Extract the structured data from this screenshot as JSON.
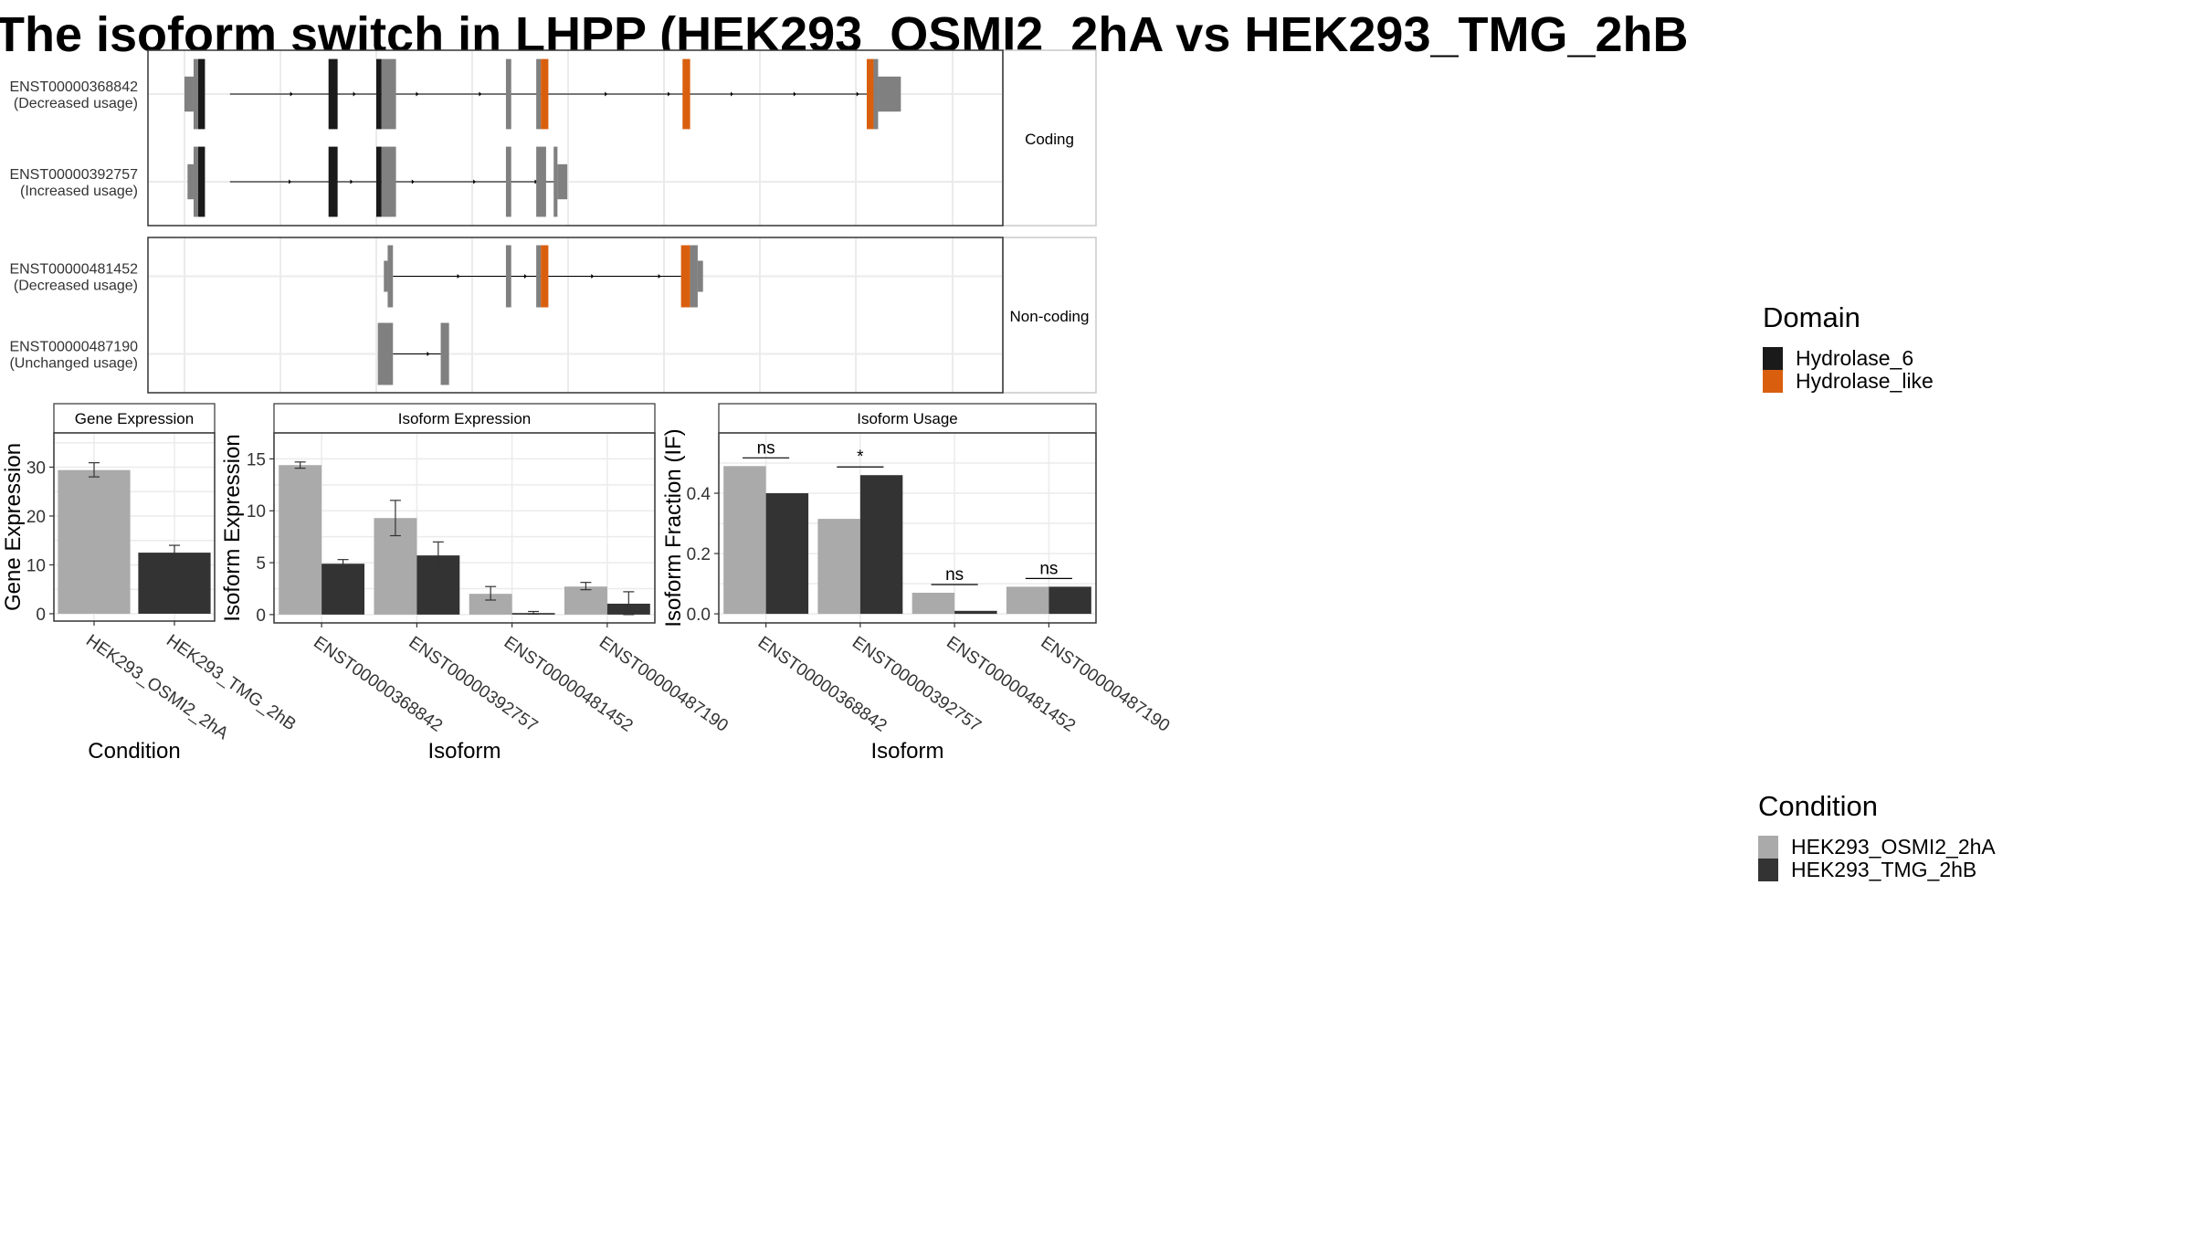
{
  "figure_title": "The isoform switch in LHPP (HEK293_OSMI2_2hA vs HEK293_TMG_2hB",
  "legend_domain": {
    "title": "Domain",
    "items": [
      {
        "label": "Hydrolase_6",
        "color": "#1a1a1a"
      },
      {
        "label": "Hydrolase_like",
        "color": "#d95f0e"
      }
    ]
  },
  "legend_condition": {
    "title": "Condition",
    "items": [
      {
        "label": "HEK293_OSMI2_2hA",
        "color": "#aaaaaa"
      },
      {
        "label": "HEK293_TMG_2hB",
        "color": "#333333"
      }
    ]
  },
  "transcript_panel": {
    "facets": [
      {
        "label": "Coding",
        "tracks": [
          {
            "label1": "ENST00000368842",
            "label2": "(Decreased usage)",
            "intron_from": 0.06,
            "intron_to": 0.915,
            "utr_exons": [
              [
                0.0,
                0.012
              ],
              [
                0.915,
                0.945
              ]
            ],
            "cds_exons": [
              {
                "from": 0.012,
                "to": 0.018,
                "color": "grey"
              },
              {
                "from": 0.018,
                "to": 0.027,
                "color": "black"
              },
              {
                "from": 0.19,
                "to": 0.202,
                "color": "black"
              },
              {
                "from": 0.253,
                "to": 0.26,
                "color": "black"
              },
              {
                "from": 0.26,
                "to": 0.279,
                "color": "grey"
              },
              {
                "from": 0.424,
                "to": 0.431,
                "color": "grey"
              },
              {
                "from": 0.464,
                "to": 0.47,
                "color": "grey"
              },
              {
                "from": 0.47,
                "to": 0.48,
                "color": "orange"
              },
              {
                "from": 0.657,
                "to": 0.667,
                "color": "orange"
              },
              {
                "from": 0.9,
                "to": 0.909,
                "color": "orange"
              },
              {
                "from": 0.909,
                "to": 0.915,
                "color": "grey"
              }
            ]
          },
          {
            "label1": "ENST00000392757",
            "label2": "(Increased usage)",
            "intron_from": 0.06,
            "intron_to": 0.49,
            "utr_exons": [
              [
                0.004,
                0.012
              ],
              [
                0.492,
                0.505
              ]
            ],
            "cds_exons": [
              {
                "from": 0.012,
                "to": 0.018,
                "color": "grey"
              },
              {
                "from": 0.018,
                "to": 0.027,
                "color": "black"
              },
              {
                "from": 0.19,
                "to": 0.202,
                "color": "black"
              },
              {
                "from": 0.253,
                "to": 0.26,
                "color": "black"
              },
              {
                "from": 0.26,
                "to": 0.279,
                "color": "grey"
              },
              {
                "from": 0.424,
                "to": 0.431,
                "color": "grey"
              },
              {
                "from": 0.464,
                "to": 0.477,
                "color": "grey"
              },
              {
                "from": 0.487,
                "to": 0.492,
                "color": "grey"
              }
            ]
          }
        ]
      },
      {
        "label": "Non-coding",
        "tracks": [
          {
            "label1": "ENST00000481452",
            "label2": "(Decreased usage)",
            "intron_from": 0.275,
            "intron_to": 0.655,
            "utr_exons": [
              [
                0.263,
                0.268
              ],
              [
                0.677,
                0.684
              ]
            ],
            "cds_exons": [
              {
                "from": 0.268,
                "to": 0.275,
                "color": "grey"
              },
              {
                "from": 0.424,
                "to": 0.431,
                "color": "grey"
              },
              {
                "from": 0.464,
                "to": 0.47,
                "color": "grey"
              },
              {
                "from": 0.47,
                "to": 0.48,
                "color": "orange"
              },
              {
                "from": 0.655,
                "to": 0.667,
                "color": "orange"
              },
              {
                "from": 0.667,
                "to": 0.677,
                "color": "grey"
              }
            ]
          },
          {
            "label1": "ENST00000487190",
            "label2": "(Unchanged usage)",
            "intron_from": 0.275,
            "intron_to": 0.338,
            "utr_exons": [],
            "cds_exons": [
              {
                "from": 0.255,
                "to": 0.275,
                "color": "grey"
              },
              {
                "from": 0.338,
                "to": 0.349,
                "color": "grey"
              }
            ]
          }
        ]
      }
    ]
  },
  "chart_data": [
    {
      "type": "bar",
      "title": "Gene Expression",
      "xlabel": "Condition",
      "ylabel": "Gene Expression",
      "categories": [
        "HEK293_OSMI2_2hA",
        "HEK293_TMG_2hB"
      ],
      "values": [
        29.4,
        12.5
      ],
      "errors": [
        [
          28.0,
          30.9
        ],
        [
          11.0,
          14.0
        ]
      ],
      "ylim": [
        -1.5,
        37
      ],
      "yticks": [
        0,
        10,
        20,
        30
      ],
      "grid": true
    },
    {
      "type": "bar",
      "title": "Isoform Expression",
      "xlabel": "Isoform",
      "ylabel": "Isoform Expression",
      "categories": [
        "ENST00000368842",
        "ENST00000392757",
        "ENST00000481452",
        "ENST00000487190"
      ],
      "series": [
        {
          "name": "HEK293_OSMI2_2hA",
          "values": [
            14.4,
            9.3,
            2.0,
            2.7
          ],
          "errors": [
            [
              14.1,
              14.7
            ],
            [
              7.6,
              11.0
            ],
            [
              1.4,
              2.7
            ],
            [
              2.4,
              3.1
            ]
          ]
        },
        {
          "name": "HEK293_TMG_2hB",
          "values": [
            4.9,
            5.7,
            0.15,
            1.05
          ],
          "errors": [
            [
              4.6,
              5.3
            ],
            [
              4.4,
              7.0
            ],
            [
              0.05,
              0.3
            ],
            [
              0.0,
              2.2
            ]
          ]
        }
      ],
      "ylim": [
        -0.8,
        17.5
      ],
      "yticks": [
        0,
        5,
        10,
        15
      ],
      "grid": true
    },
    {
      "type": "bar",
      "title": "Isoform Usage",
      "xlabel": "Isoform",
      "ylabel": "Isoform Fraction (IF)",
      "categories": [
        "ENST00000368842",
        "ENST00000392757",
        "ENST00000481452",
        "ENST00000487190"
      ],
      "series": [
        {
          "name": "HEK293_OSMI2_2hA",
          "values": [
            0.49,
            0.315,
            0.07,
            0.09
          ]
        },
        {
          "name": "HEK293_TMG_2hB",
          "values": [
            0.4,
            0.46,
            0.01,
            0.09
          ]
        }
      ],
      "significance": [
        "ns",
        "*",
        "ns",
        "ns"
      ],
      "ylim": [
        -0.03,
        0.6
      ],
      "yticks": [
        0.0,
        0.2,
        0.4
      ],
      "ytick_labels": [
        "0.0",
        "0.2",
        "0.4"
      ],
      "grid": true
    }
  ]
}
